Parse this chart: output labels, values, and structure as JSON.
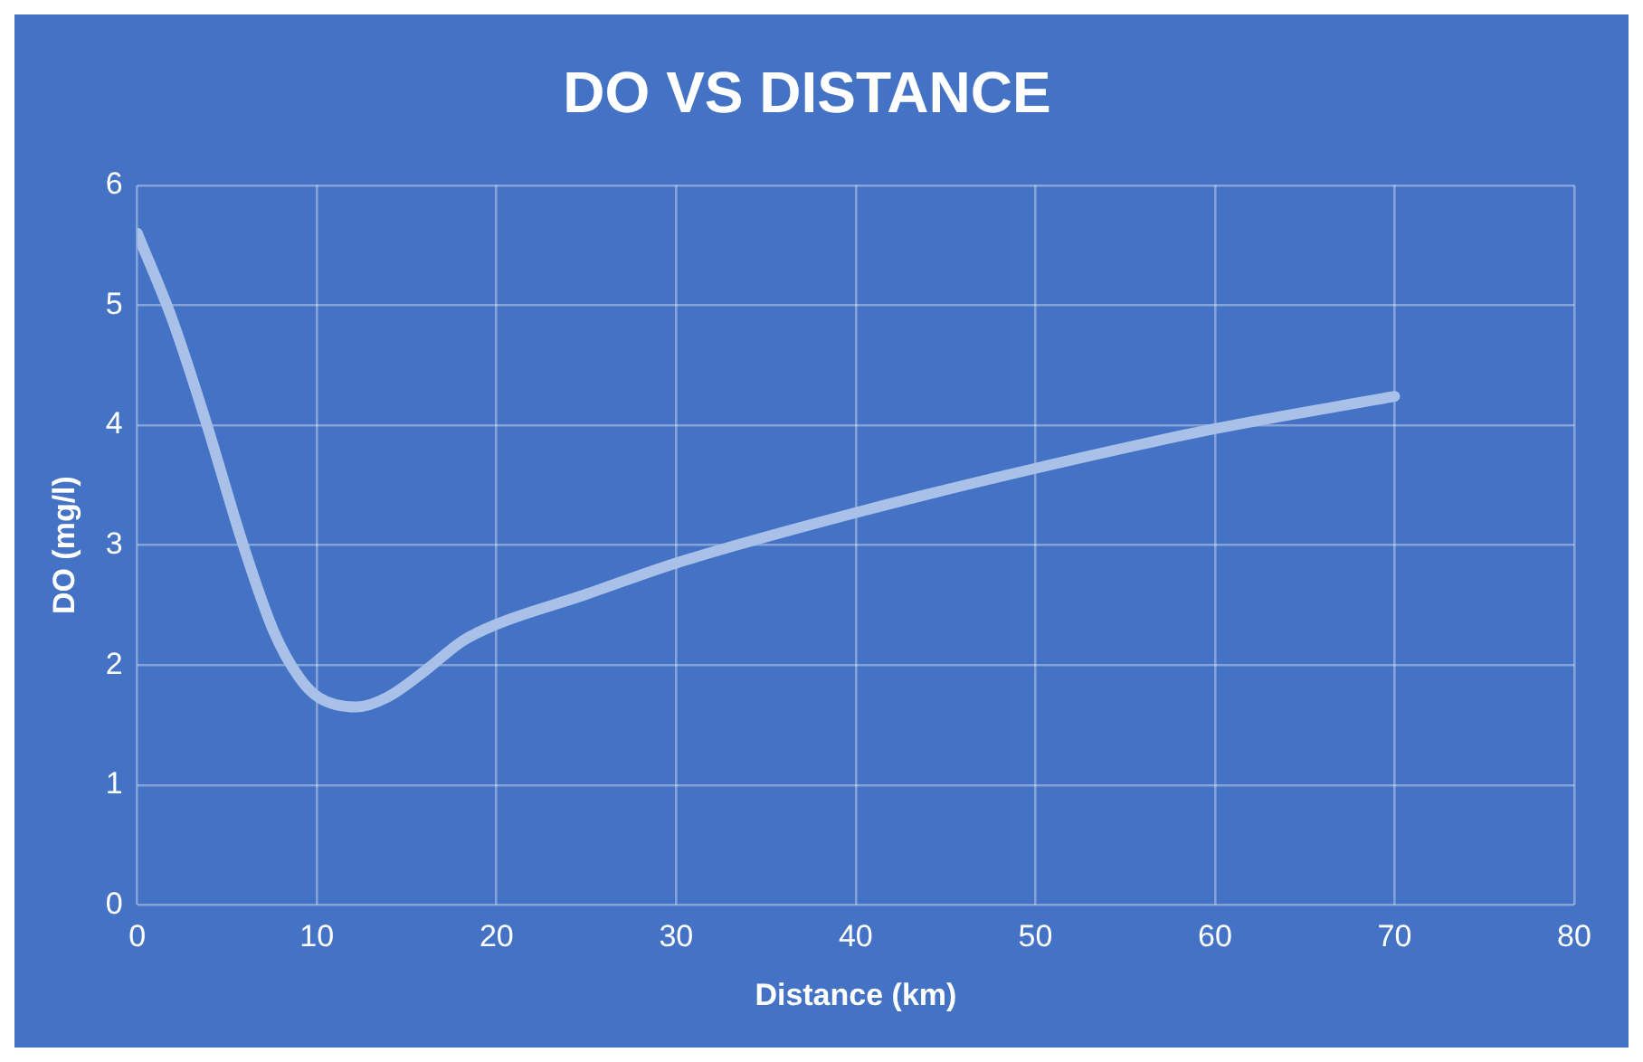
{
  "chart_data": {
    "type": "line",
    "title": "DO VS DISTANCE",
    "xlabel": "Distance (km)",
    "ylabel": "DO (mg/l)",
    "xlim": [
      0,
      80
    ],
    "xticks": [
      0,
      10,
      20,
      30,
      40,
      50,
      60,
      70,
      80
    ],
    "ylim": [
      0,
      6
    ],
    "yticks": [
      0,
      1,
      2,
      3,
      4,
      5,
      6
    ],
    "grid": true,
    "marker": "none",
    "series": [
      {
        "color": "#a9c1e8",
        "x": [
          0,
          2,
          3.8,
          5.9,
          7.6,
          9,
          10.1,
          12.2,
          13.9,
          16,
          18.1,
          20,
          24.8,
          30,
          40,
          50,
          60,
          70
        ],
        "values": [
          5.6,
          4.86,
          4.04,
          3.0,
          2.28,
          1.9,
          1.73,
          1.65,
          1.73,
          1.95,
          2.2,
          2.34,
          2.58,
          2.85,
          3.27,
          3.64,
          3.97,
          4.24
        ]
      }
    ]
  }
}
